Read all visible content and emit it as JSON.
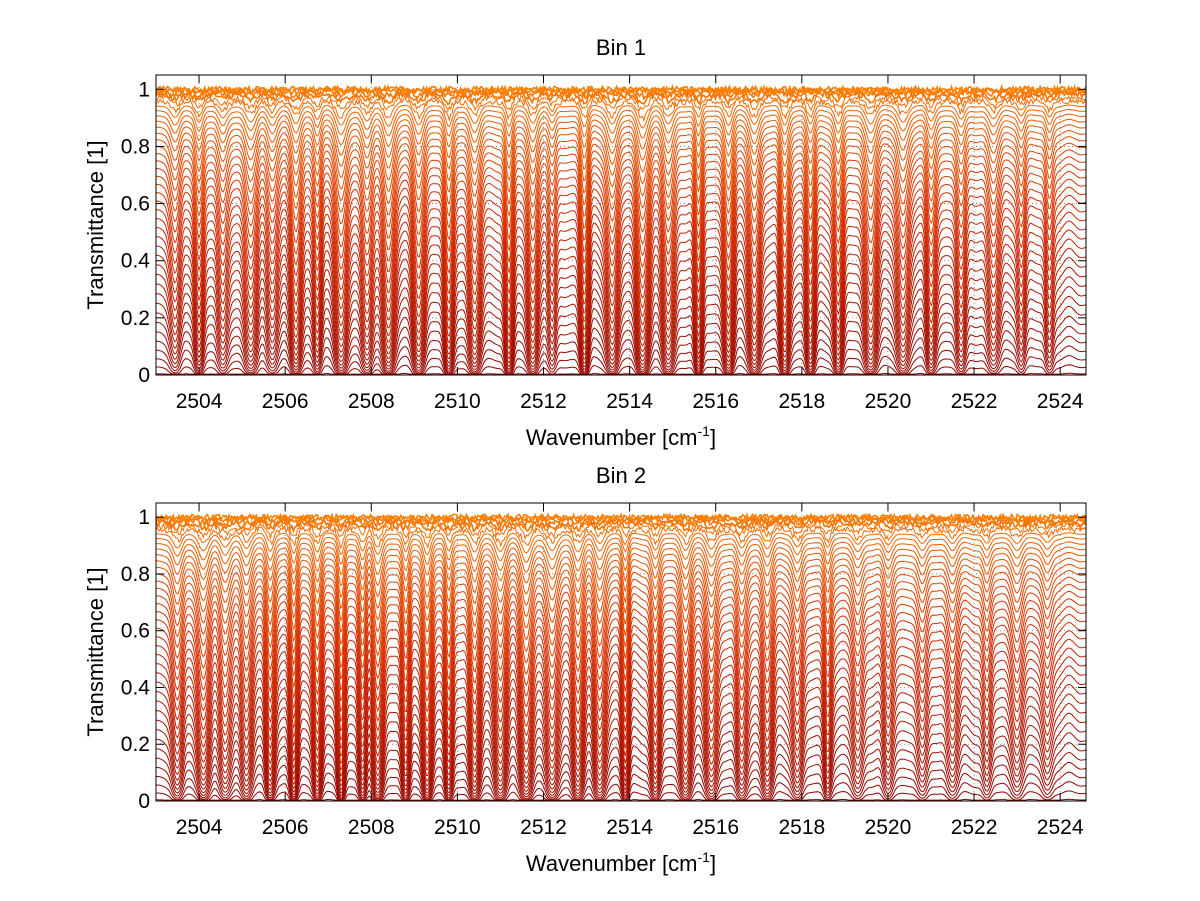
{
  "chart_data": [
    {
      "type": "line",
      "title": "Bin 1",
      "xlabel_main": "Wavenumber [cm",
      "xlabel_sup": "-1",
      "xlabel_close": "]",
      "ylabel": "Transmittance [1]",
      "xlim": [
        2503.0,
        2524.6
      ],
      "ylim": [
        0,
        1.05
      ],
      "x_ticks": [
        2504,
        2506,
        2508,
        2510,
        2512,
        2514,
        2516,
        2518,
        2520,
        2522,
        2524
      ],
      "y_ticks": [
        0,
        0.2,
        0.4,
        0.6,
        0.8,
        1
      ],
      "y_tick_labels": [
        "0",
        "0.2",
        "0.4",
        "0.6",
        "0.8",
        "1"
      ],
      "grid": true,
      "series_count": 40,
      "series_colors": {
        "low": "#8b0000",
        "mid": "#d42a00",
        "high": "#ff8000"
      },
      "absorption_lines": [
        2503.45,
        2504.0,
        2504.55,
        2505.2,
        2505.7,
        2506.25,
        2506.75,
        2507.3,
        2507.9,
        2508.4,
        2509.1,
        2509.8,
        2510.4,
        2511.2,
        2511.75,
        2512.2,
        2512.95,
        2513.6,
        2514.3,
        2514.9,
        2515.6,
        2516.3,
        2516.9,
        2517.6,
        2518.2,
        2518.85,
        2519.6,
        2520.35,
        2521.0,
        2521.7,
        2522.45,
        2523.1,
        2523.75
      ],
      "absorption_depths": [
        0.55,
        0.75,
        0.6,
        0.75,
        0.5,
        0.85,
        0.6,
        0.9,
        0.75,
        0.95,
        0.85,
        1.0,
        0.85,
        1.0,
        0.8,
        0.5,
        1.0,
        0.85,
        1.0,
        0.85,
        1.0,
        0.9,
        0.85,
        0.9,
        0.85,
        0.85,
        0.8,
        0.75,
        0.7,
        0.65,
        0.6,
        0.45,
        0.5
      ]
    },
    {
      "type": "line",
      "title": "Bin 2",
      "xlabel_main": "Wavenumber [cm",
      "xlabel_sup": "-1",
      "xlabel_close": "]",
      "ylabel": "Transmittance [1]",
      "xlim": [
        2503.0,
        2524.6
      ],
      "ylim": [
        0,
        1.05
      ],
      "x_ticks": [
        2504,
        2506,
        2508,
        2510,
        2512,
        2514,
        2516,
        2518,
        2520,
        2522,
        2524
      ],
      "y_ticks": [
        0,
        0.2,
        0.4,
        0.6,
        0.8,
        1
      ],
      "y_tick_labels": [
        "0",
        "0.2",
        "0.4",
        "0.6",
        "0.8",
        "1"
      ],
      "grid": true,
      "series_count": 40,
      "series_colors": {
        "low": "#8b0000",
        "mid": "#d42a00",
        "high": "#ff8000"
      },
      "absorption_lines": [
        2503.5,
        2504.1,
        2504.6,
        2505.1,
        2505.65,
        2506.2,
        2506.75,
        2507.3,
        2507.8,
        2508.15,
        2508.8,
        2509.3,
        2509.8,
        2510.4,
        2511.0,
        2511.6,
        2512.2,
        2512.8,
        2513.3,
        2513.9,
        2514.6,
        2515.3,
        2515.9,
        2516.6,
        2517.2,
        2517.9,
        2518.6,
        2519.3,
        2520.0,
        2520.8,
        2521.5,
        2522.3,
        2523.0,
        2523.7
      ],
      "absorption_depths": [
        0.7,
        0.8,
        0.65,
        0.7,
        0.8,
        0.95,
        0.85,
        1.0,
        0.85,
        0.95,
        0.9,
        1.0,
        0.85,
        0.9,
        0.8,
        0.9,
        0.85,
        0.85,
        0.8,
        0.85,
        0.8,
        0.75,
        0.7,
        0.7,
        0.7,
        0.6,
        0.6,
        0.5,
        0.55,
        0.5,
        0.45,
        0.45,
        0.4,
        0.4
      ]
    }
  ]
}
